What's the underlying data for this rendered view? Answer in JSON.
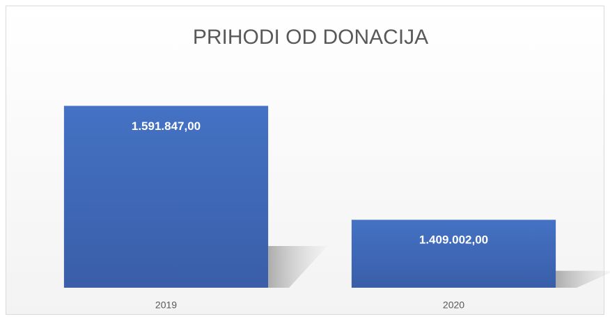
{
  "chart_data": {
    "type": "bar",
    "title": "PRIHODI OD DONACIJA",
    "categories": [
      "2019",
      "2020"
    ],
    "values": [
      1591847,
      1409002
    ],
    "value_labels": [
      "1.591.847,00",
      "1.409.002,00"
    ],
    "color": "#4472c4",
    "ylim": [
      1300000,
      1600000
    ]
  }
}
